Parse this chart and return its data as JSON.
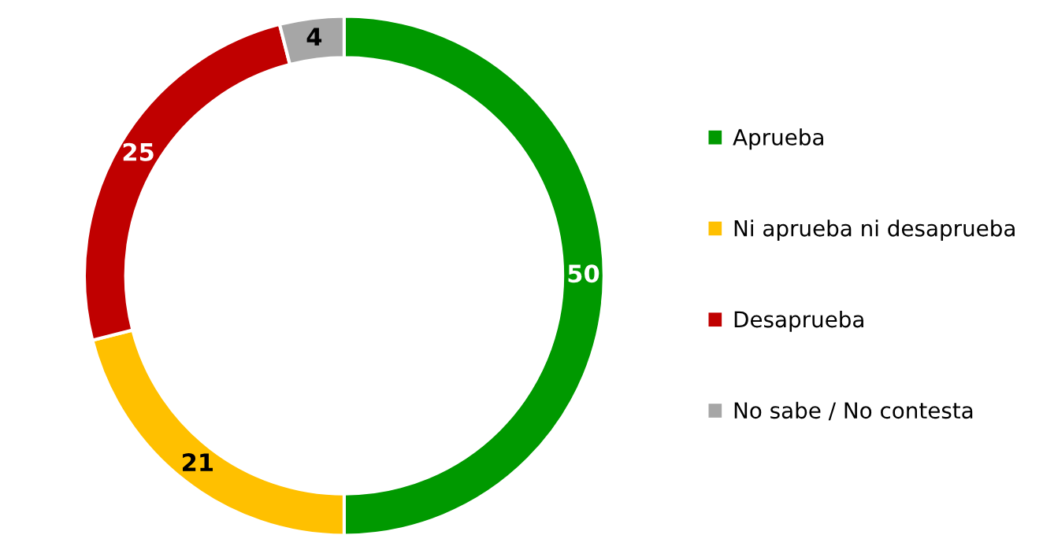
{
  "chart_data": {
    "type": "donut",
    "categories": [
      "Aprueba",
      "Ni aprueba ni desaprueba",
      "Desaprueba",
      "No sabe / No contesta"
    ],
    "values": [
      50,
      21,
      25,
      4
    ],
    "colors": [
      "#009900",
      "#ffc000",
      "#c00000",
      "#a6a6a6"
    ],
    "data_labels": true,
    "legend": "right"
  }
}
